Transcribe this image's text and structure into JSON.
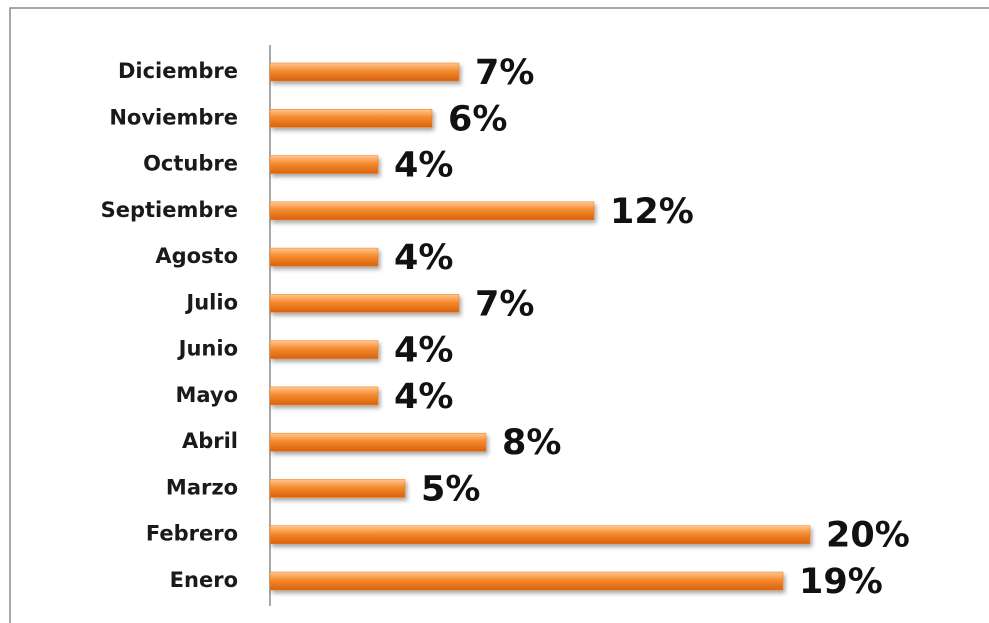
{
  "chart_data": {
    "type": "bar",
    "orientation": "horizontal",
    "categories": [
      "Enero",
      "Febrero",
      "Marzo",
      "Abril",
      "Mayo",
      "Junio",
      "Julio",
      "Agosto",
      "Septiembre",
      "Octubre",
      "Noviembre",
      "Diciembre"
    ],
    "values": [
      19,
      20,
      5,
      8,
      4,
      4,
      7,
      4,
      12,
      4,
      6,
      7
    ],
    "value_labels": [
      "19%",
      "20%",
      "5%",
      "8%",
      "4%",
      "4%",
      "7%",
      "4%",
      "12%",
      "4%",
      "6%",
      "7%"
    ],
    "color": "#f07a1c"
  }
}
